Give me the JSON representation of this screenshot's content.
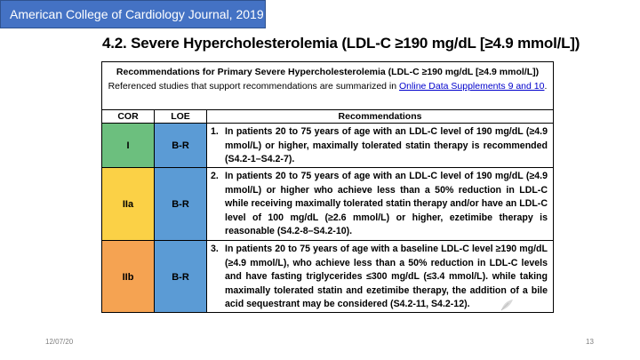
{
  "source_badge": "American College of Cardiology Journal, 2019",
  "slide_title": "4.2. Severe Hypercholesterolemia (LDL-C ≥190 mg/dL [≥4.9 mmol/L])",
  "table": {
    "header_title": "Recommendations for Primary Severe Hypercholesterolemia (LDL-C ≥190 mg/dL [≥4.9 mmol/L])",
    "header_note": "Referenced studies that support recommendations are summarized in",
    "header_link": "Online Data Supplements 9 and 10",
    "header_period": ".",
    "columns": [
      "COR",
      "LOE",
      "Recommendations"
    ],
    "rows": [
      {
        "cor": "I",
        "loe": "B-R",
        "num": "1.",
        "text": "In patients 20 to 75 years of age with an LDL-C level of 190 mg/dL (≥4.9 mmol/L) or higher, maximally tolerated statin therapy is recommended (S4.2-1–S4.2-7).",
        "cor_color": "#6cbf7e"
      },
      {
        "cor": "IIa",
        "loe": "B-R",
        "num": "2.",
        "text": "In patients 20 to 75 years of age with an LDL-C level of 190 mg/dL (≥4.9 mmol/L) or higher who achieve less than a 50% reduction in LDL-C while receiving maximally tolerated statin therapy and/or have an LDL-C level of 100 mg/dL (≥2.6 mmol/L) or higher, ezetimibe therapy is reasonable (S4.2-8–S4.2-10).",
        "cor_color": "#fbd146"
      },
      {
        "cor": "IIb",
        "loe": "B-R",
        "num": "3.",
        "text": "In patients 20 to 75 years of age with a baseline LDL-C level ≥190 mg/dL (≥4.9 mmol/L), who achieve less than a 50% reduction in LDL-C levels and have fasting triglycerides ≤300 mg/dL (≤3.4 mmol/L). while taking maximally tolerated statin and ezetimibe therapy, the addition of a bile acid sequestrant may be considered (S4.2-11, S4.2-12).",
        "cor_color": "#f5a352"
      }
    ],
    "loe_color": "#5b9bd5"
  },
  "footer": {
    "date": "12/07/20",
    "page": "13"
  }
}
